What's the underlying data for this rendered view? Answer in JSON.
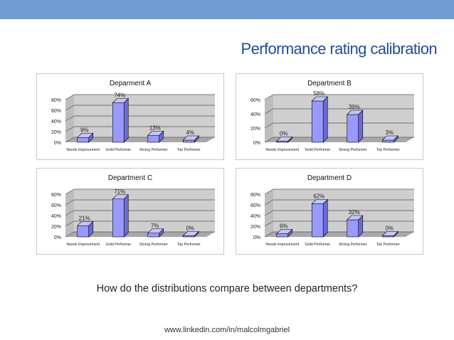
{
  "slide": {
    "title": "Performance rating calibration",
    "question": "How do the distributions compare between departments?",
    "footer": "www.linkedin.com/in/malcolmgabriel"
  },
  "colors": {
    "header_bar": "#6f9bd1",
    "title": "#1f4e9a",
    "bar_face": "#9999ff",
    "bar_side": "#6b6bd6",
    "bar_top": "#c4c4ff",
    "wall": "#cfcfcf",
    "floor": "#a8a8a8"
  },
  "chart_data": [
    {
      "type": "bar",
      "title": "Deparment A",
      "categories": [
        "Needs Improvement",
        "Solid Performer",
        "Strong Performer",
        "Top Performer"
      ],
      "values": [
        9,
        74,
        13,
        4
      ],
      "value_labels": [
        "9%",
        "74%",
        "13%",
        "4%"
      ],
      "y_ticks": [
        "0%",
        "20%",
        "40%",
        "60%",
        "80%"
      ],
      "ylim": [
        0,
        80
      ],
      "grid": true
    },
    {
      "type": "bar",
      "title": "Department B",
      "categories": [
        "Needs Improvement",
        "Solid Performer",
        "Strong Performer",
        "Top Performer"
      ],
      "values": [
        0,
        58,
        39,
        3
      ],
      "value_labels": [
        "0%",
        "58%",
        "39%",
        "3%"
      ],
      "y_ticks": [
        "0%",
        "20%",
        "40%",
        "60%"
      ],
      "ylim": [
        0,
        60
      ],
      "grid": true
    },
    {
      "type": "bar",
      "title": "Department C",
      "categories": [
        "Needs Improvement",
        "Solid Performer",
        "Strong Performer",
        "Top Performer"
      ],
      "values": [
        21,
        71,
        7,
        0
      ],
      "value_labels": [
        "21%",
        "71%",
        "7%",
        "0%"
      ],
      "y_ticks": [
        "0%",
        "20%",
        "40%",
        "60%",
        "80%"
      ],
      "ylim": [
        0,
        80
      ],
      "grid": true
    },
    {
      "type": "bar",
      "title": "Department D",
      "categories": [
        "Needs Improvement",
        "Solid Performer",
        "Strong Performer",
        "Top Performer"
      ],
      "values": [
        6,
        62,
        32,
        0
      ],
      "value_labels": [
        "6%",
        "62%",
        "32%",
        "0%"
      ],
      "y_ticks": [
        "0%",
        "20%",
        "40%",
        "60%",
        "80%"
      ],
      "ylim": [
        0,
        80
      ],
      "grid": true
    }
  ]
}
